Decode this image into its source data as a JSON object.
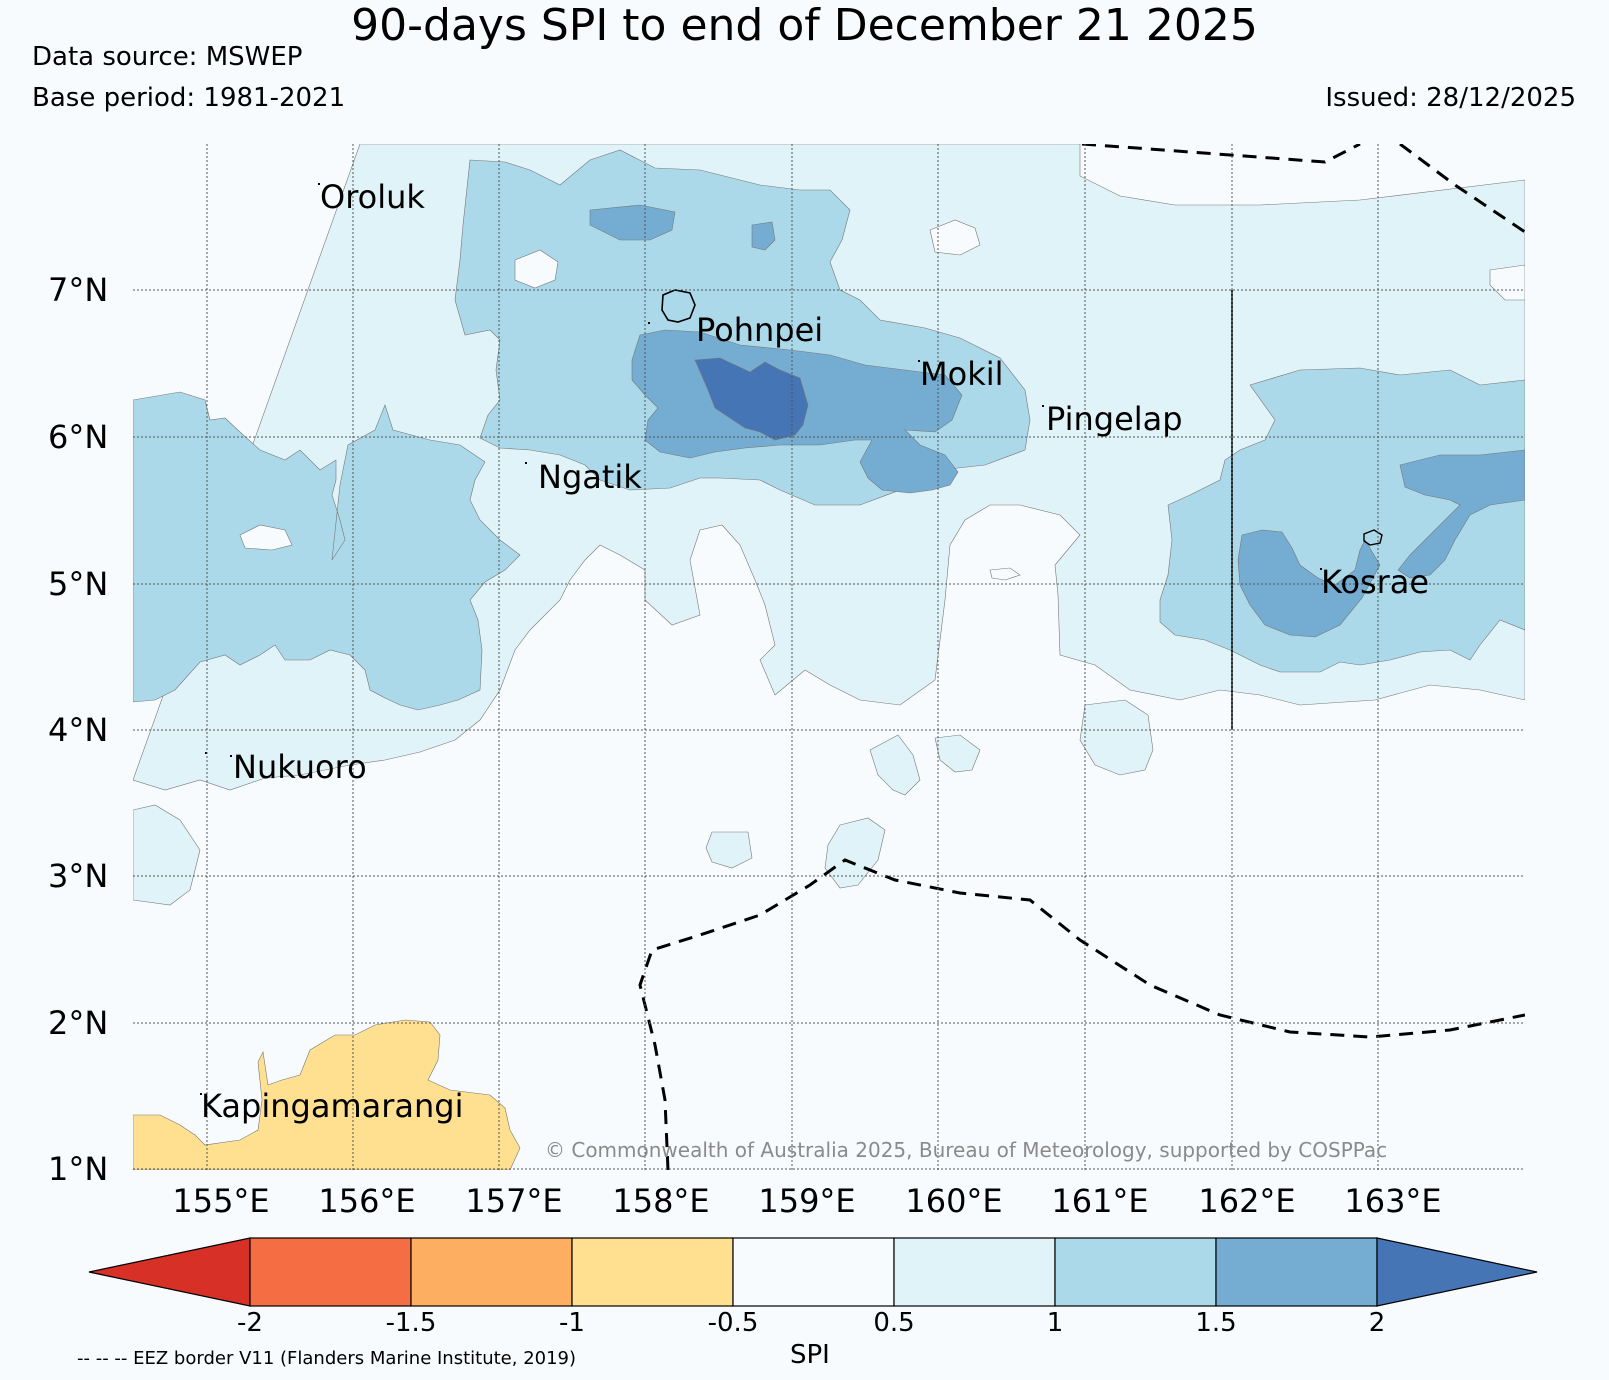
{
  "header": {
    "title": "90-days SPI to end of December 21 2025",
    "data_source": "Data source: MSWEP",
    "base_period": "Base period: 1981-2021",
    "issued": "Issued: 28/12/2025"
  },
  "map": {
    "lat_labels": [
      "7°N",
      "6°N",
      "5°N",
      "4°N",
      "3°N",
      "2°N",
      "1°N"
    ],
    "lon_labels": [
      "155°E",
      "156°E",
      "157°E",
      "158°E",
      "159°E",
      "160°E",
      "161°E",
      "162°E",
      "163°E"
    ],
    "places": {
      "oroluk": "Oroluk",
      "pohnpei": "Pohnpei",
      "mokil": "Mokil",
      "pingelap": "Pingelap",
      "ngatik": "Ngatik",
      "kosrae": "Kosrae",
      "nukuoro": "Nukuoro",
      "kapingamarangi": "Kapingamarangi"
    },
    "copyright": "© Commonwealth of Australia 2025, Bureau of Meteorology, supported by COSPPac"
  },
  "colorbar": {
    "ticks": [
      "-2",
      "-1.5",
      "-1",
      "-0.5",
      "0.5",
      "1",
      "1.5",
      "2"
    ],
    "label": "SPI",
    "colors": {
      "below_-2": "#d73027",
      "-2_-1.5": "#f46d43",
      "-1.5_-1": "#fdae61",
      "-1_-0.5": "#fee090",
      "-0.5_0.5": "#f7fbfd",
      "0.5_1": "#e0f3f8",
      "1_1.5": "#abd9e9",
      "1.5_2": "#74add1",
      "above_2": "#4575b4"
    }
  },
  "footer": {
    "eez_note": "-- -- -- EEZ border V11 (Flanders Marine Institute, 2019)"
  }
}
